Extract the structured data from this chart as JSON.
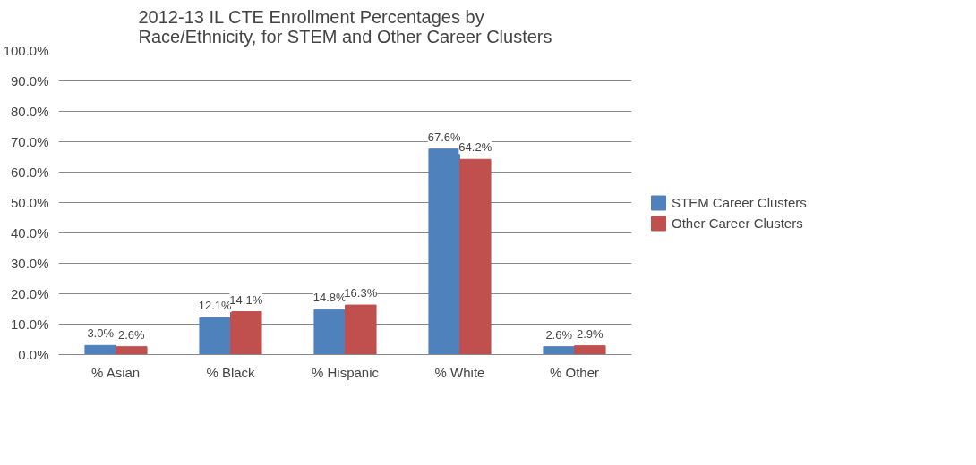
{
  "chart_data": {
    "type": "bar",
    "title": "2012-13 IL CTE Enrollment Percentages by Race/Ethnicity, for STEM and Other Career Clusters",
    "categories": [
      "% Asian",
      "% Black",
      "% Hispanic",
      "% White",
      "% Other"
    ],
    "series": [
      {
        "name": "STEM Career Clusters",
        "color": "#4f81bd",
        "values": [
          3.0,
          12.1,
          14.8,
          67.6,
          2.6
        ],
        "value_labels": [
          "3.0%",
          "12.1%",
          "14.8%",
          "67.6%",
          "2.6%"
        ]
      },
      {
        "name": "Other Career Clusters",
        "color": "#c0504d",
        "values": [
          2.6,
          14.1,
          16.3,
          64.2,
          2.9
        ],
        "value_labels": [
          "2.6%",
          "14.1%",
          "16.3%",
          "64.2%",
          "2.9%"
        ]
      }
    ],
    "ylim": [
      0,
      100
    ],
    "yticks": [
      {
        "value": 0,
        "label": "0.0%"
      },
      {
        "value": 10,
        "label": "10.0%"
      },
      {
        "value": 20,
        "label": "20.0%"
      },
      {
        "value": 30,
        "label": "30.0%"
      },
      {
        "value": 40,
        "label": "40.0%"
      },
      {
        "value": 50,
        "label": "50.0%"
      },
      {
        "value": 60,
        "label": "60.0%"
      },
      {
        "value": 70,
        "label": "70.0%"
      },
      {
        "value": 80,
        "label": "80.0%"
      },
      {
        "value": 90,
        "label": "90.0%"
      },
      {
        "value": 100,
        "label": "100.0%"
      }
    ],
    "grid": "y",
    "legend": "right"
  }
}
